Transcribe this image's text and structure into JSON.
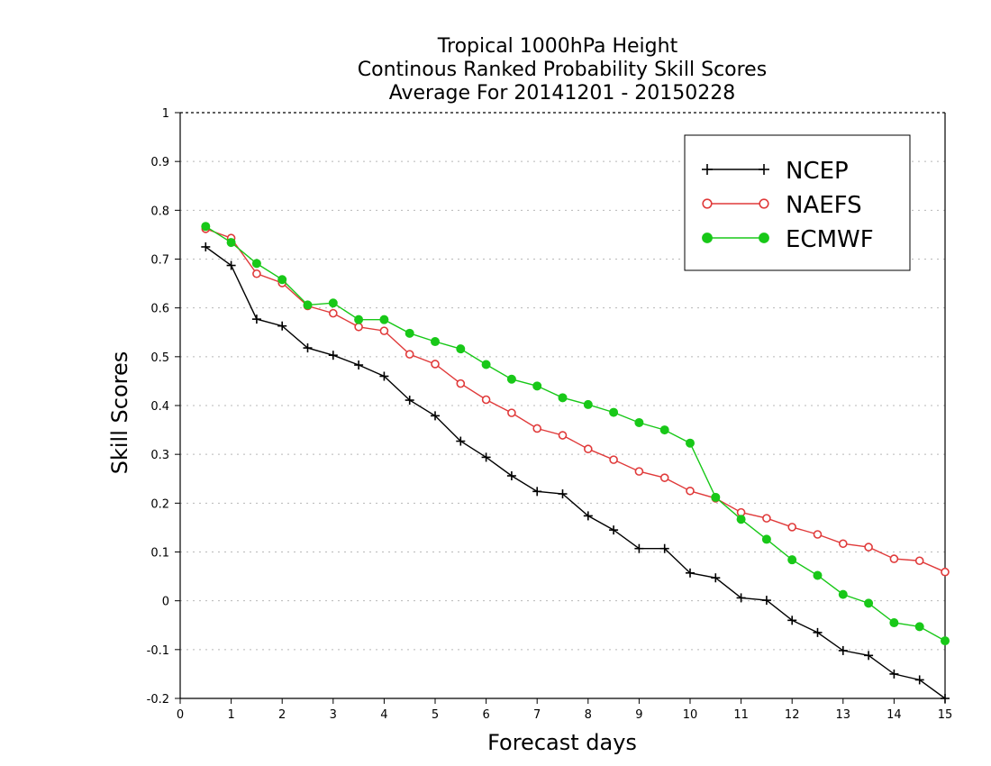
{
  "chart_data": {
    "type": "line",
    "title_lines": [
      "Tropical 1000hPa Height",
      "Continous Ranked Probability Skill Scores",
      "Average For 20141201 - 20150228"
    ],
    "xlabel": "Forecast days",
    "ylabel": "Skill Scores",
    "xlim": [
      0,
      15
    ],
    "ylim": [
      -0.2,
      1
    ],
    "xticks": [
      "0",
      "1",
      "2",
      "3",
      "4",
      "5",
      "6",
      "7",
      "8",
      "9",
      "10",
      "11",
      "12",
      "13",
      "14",
      "15"
    ],
    "yticks": [
      "-0.2",
      "-0.1",
      "0",
      "0.1",
      "0.2",
      "0.3",
      "0.4",
      "0.5",
      "0.6",
      "0.7",
      "0.8",
      "0.9",
      "1"
    ],
    "grid": "horizontal dotted",
    "legend_position": "top-right",
    "x": [
      0.5,
      1,
      1.5,
      2,
      2.5,
      3,
      3.5,
      4,
      4.5,
      5,
      5.5,
      6,
      6.5,
      7,
      7.5,
      8,
      8.5,
      9,
      9.5,
      10,
      10.5,
      11,
      11.5,
      12,
      12.5,
      13,
      13.5,
      14,
      14.5,
      15
    ],
    "series": [
      {
        "name": "NCEP",
        "color": "#000000",
        "marker": "plus",
        "values": [
          0.725,
          0.687,
          0.577,
          0.563,
          0.518,
          0.503,
          0.483,
          0.46,
          0.411,
          0.379,
          0.327,
          0.294,
          0.256,
          0.224,
          0.219,
          0.174,
          0.145,
          0.107,
          0.107,
          0.057,
          0.047,
          0.006,
          0.001,
          -0.04,
          -0.065,
          -0.102,
          -0.112,
          -0.15,
          -0.162,
          -0.2
        ]
      },
      {
        "name": "NAEFS",
        "color": "#e03a3a",
        "marker": "open-circle",
        "values": [
          0.762,
          0.743,
          0.67,
          0.651,
          0.604,
          0.589,
          0.561,
          0.553,
          0.505,
          0.485,
          0.445,
          0.412,
          0.385,
          0.353,
          0.339,
          0.311,
          0.289,
          0.265,
          0.252,
          0.225,
          0.21,
          0.181,
          0.169,
          0.151,
          0.136,
          0.117,
          0.11,
          0.086,
          0.082,
          0.059
        ]
      },
      {
        "name": "ECMWF",
        "color": "#18c818",
        "marker": "filled-circle",
        "values": [
          0.767,
          0.734,
          0.691,
          0.658,
          0.606,
          0.61,
          0.576,
          0.576,
          0.548,
          0.531,
          0.516,
          0.484,
          0.454,
          0.44,
          0.416,
          0.402,
          0.386,
          0.365,
          0.35,
          0.323,
          0.212,
          0.167,
          0.126,
          0.084,
          0.052,
          0.013,
          -0.005,
          -0.045,
          -0.053,
          -0.082
        ]
      }
    ]
  }
}
